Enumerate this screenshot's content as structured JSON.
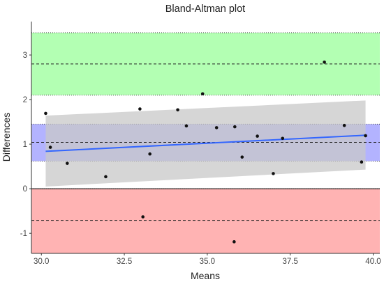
{
  "chart_data": {
    "type": "scatter",
    "title": "Bland-Altman plot",
    "xlabel": "Means",
    "ylabel": "Differences",
    "xlim": [
      29.7,
      40.2
    ],
    "ylim": [
      -1.45,
      3.75
    ],
    "x_ticks": [
      30.0,
      32.5,
      35.0,
      37.5,
      40.0
    ],
    "x_tick_labels": [
      "30.0",
      "32.5",
      "35.0",
      "37.5",
      "40.0"
    ],
    "y_ticks": [
      -1,
      0,
      1,
      2,
      3
    ],
    "y_tick_labels": [
      "-1",
      "0",
      "1",
      "2",
      "3"
    ],
    "bands": [
      {
        "role": "upper limit of agreement CI",
        "y0": 2.1,
        "y1": 3.5,
        "fill": "#b3ffb3",
        "line": 2.8
      },
      {
        "role": "mean difference CI",
        "y0": 0.62,
        "y1": 1.45,
        "fill": "#b3b3ff",
        "line": 1.04
      },
      {
        "role": "lower limit of agreement CI",
        "y0": -1.45,
        "y1": 0.0,
        "fill": "#ffb3b3",
        "line": -0.71
      }
    ],
    "zero_line": 0,
    "points": [
      {
        "x": 30.13,
        "y": 1.69
      },
      {
        "x": 30.27,
        "y": 0.93
      },
      {
        "x": 30.78,
        "y": 0.57
      },
      {
        "x": 31.94,
        "y": 0.27
      },
      {
        "x": 32.97,
        "y": 1.79
      },
      {
        "x": 33.06,
        "y": -0.63
      },
      {
        "x": 33.27,
        "y": 0.78
      },
      {
        "x": 34.11,
        "y": 1.77
      },
      {
        "x": 34.37,
        "y": 1.41
      },
      {
        "x": 34.86,
        "y": 2.13
      },
      {
        "x": 35.28,
        "y": 1.37
      },
      {
        "x": 35.83,
        "y": 1.39
      },
      {
        "x": 35.81,
        "y": -1.19
      },
      {
        "x": 36.05,
        "y": 0.71
      },
      {
        "x": 36.51,
        "y": 1.18
      },
      {
        "x": 36.99,
        "y": 0.34
      },
      {
        "x": 37.27,
        "y": 1.13
      },
      {
        "x": 38.53,
        "y": 2.84
      },
      {
        "x": 39.13,
        "y": 1.42
      },
      {
        "x": 39.65,
        "y": 0.6
      },
      {
        "x": 39.77,
        "y": 1.19
      }
    ],
    "regression": {
      "x0": 30.13,
      "y0": 0.84,
      "x1": 39.77,
      "y1": 1.2,
      "color": "#3366ff"
    },
    "regression_ci": {
      "x": [
        30.13,
        39.77
      ],
      "lower": [
        0.05,
        0.43
      ],
      "upper": [
        1.64,
        1.98
      ],
      "fill": "#c8c8c8"
    },
    "grid": false
  }
}
